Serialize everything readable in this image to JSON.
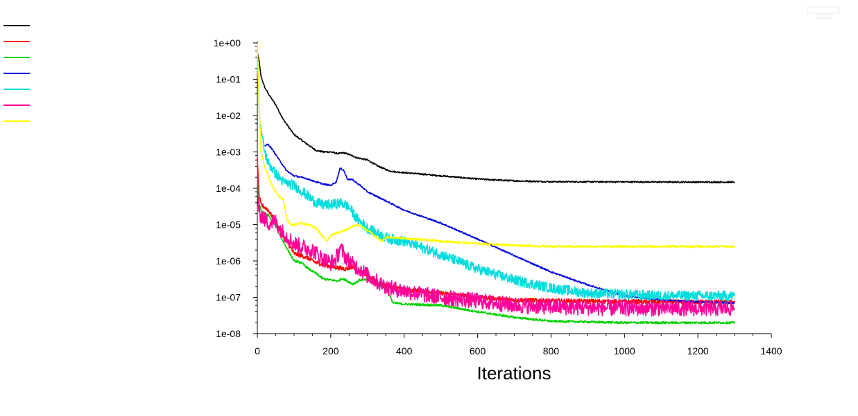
{
  "chart_data": {
    "type": "line",
    "title": "",
    "xlabel": "Iterations",
    "ylabel": "",
    "xlim": [
      0,
      1400
    ],
    "ylim": [
      1e-08,
      1
    ],
    "yscale": "log",
    "grid": false,
    "legend_placement": "top-left",
    "x_ticks": [
      0,
      200,
      400,
      600,
      800,
      1000,
      1200,
      1400
    ],
    "x_tick_labels": [
      "0",
      "200",
      "400",
      "600",
      "800",
      "1000",
      "1200",
      "1400"
    ],
    "y_ticks": [
      1,
      0.1,
      0.01,
      0.001,
      0.0001,
      1e-05,
      1e-06,
      1e-07,
      1e-08
    ],
    "y_tick_labels": [
      "1e+00",
      "1e-01",
      "1e-02",
      "1e-03",
      "1e-04",
      "1e-05",
      "1e-06",
      "1e-07",
      "1e-08"
    ],
    "series": [
      {
        "color": "#000000",
        "noise": 0.02,
        "x": [
          0,
          5,
          10,
          20,
          30,
          50,
          70,
          100,
          130,
          160,
          180,
          200,
          220,
          235,
          250,
          270,
          300,
          330,
          360,
          380,
          400,
          500,
          600,
          700,
          800,
          1000,
          1200,
          1300
        ],
        "y": [
          0.6,
          0.3,
          0.12,
          0.06,
          0.04,
          0.02,
          0.008,
          0.003,
          0.0018,
          0.0011,
          0.001,
          0.001,
          0.0009,
          0.00095,
          0.00085,
          0.0007,
          0.0006,
          0.0004,
          0.0003,
          0.00028,
          0.00027,
          0.00022,
          0.00018,
          0.00016,
          0.000152,
          0.00015,
          0.000148,
          0.000148
        ]
      },
      {
        "color": "#ff0000",
        "noise": 0.06,
        "x": [
          0,
          5,
          10,
          20,
          30,
          50,
          70,
          100,
          130,
          160,
          200,
          220,
          240,
          260,
          280,
          300,
          330,
          360,
          380,
          400,
          450,
          500,
          600,
          700,
          800,
          900,
          1000,
          1100,
          1200,
          1300
        ],
        "y": [
          0.0006,
          6e-05,
          3.5e-05,
          3e-05,
          2.5e-05,
          1.2e-05,
          5e-06,
          1.6e-06,
          1.3e-06,
          9e-07,
          7e-07,
          6.5e-07,
          6e-07,
          7e-07,
          5e-07,
          4e-07,
          2.5e-07,
          2e-07,
          1.8e-07,
          1.6e-07,
          1.5e-07,
          1.3e-07,
          1e-07,
          8.5e-08,
          8e-08,
          7.8e-08,
          7.6e-08,
          7.5e-08,
          7.5e-08,
          7.4e-08
        ]
      },
      {
        "color": "#00d000",
        "noise": 0.03,
        "x": [
          0,
          5,
          10,
          20,
          30,
          50,
          70,
          90,
          100,
          120,
          140,
          160,
          180,
          200,
          220,
          230,
          240,
          260,
          280,
          300,
          330,
          350,
          370,
          400,
          500,
          600,
          700,
          800,
          900,
          1000,
          1100,
          1200,
          1300
        ],
        "y": [
          0.0002,
          4e-05,
          2.5e-05,
          2e-05,
          1.8e-05,
          9e-06,
          3.5e-06,
          1.5e-06,
          1e-06,
          9e-07,
          6e-07,
          4.5e-07,
          3.2e-07,
          3e-07,
          2.8e-07,
          3.3e-07,
          3e-07,
          2.3e-07,
          3e-07,
          3e-07,
          2.2e-07,
          1.8e-07,
          7e-08,
          6.5e-08,
          6e-08,
          4e-08,
          2.8e-08,
          2.2e-08,
          2.1e-08,
          2e-08,
          2e-08,
          2e-08,
          2e-08
        ]
      },
      {
        "color": "#0000dd",
        "noise": 0.02,
        "x": [
          20,
          30,
          40,
          60,
          80,
          100,
          130,
          160,
          180,
          200,
          215,
          225,
          235,
          245,
          260,
          280,
          300,
          350,
          400,
          500,
          600,
          700,
          800,
          900,
          1000,
          1100,
          1200,
          1300
        ],
        "y": [
          0.0015,
          0.0016,
          0.0012,
          0.0006,
          0.0003,
          0.00022,
          0.00019,
          0.00015,
          0.00013,
          0.00012,
          0.00015,
          0.00035,
          0.00032,
          0.00018,
          0.00017,
          0.00012,
          8e-05,
          4.5e-05,
          2.5e-05,
          1.1e-05,
          4e-06,
          1.4e-06,
          5e-07,
          2.2e-07,
          1.1e-07,
          8.5e-08,
          7.5e-08,
          7e-08
        ]
      },
      {
        "color": "#00dddd",
        "noise": 0.14,
        "x": [
          0,
          3,
          6,
          10,
          20,
          30,
          50,
          70,
          100,
          130,
          160,
          180,
          200,
          220,
          230,
          250,
          270,
          300,
          330,
          360,
          400,
          500,
          600,
          700,
          800,
          900,
          1000,
          1100,
          1200,
          1300
        ],
        "y": [
          0.4,
          0.05,
          0.01,
          0.004,
          0.001,
          0.0005,
          0.00025,
          0.00015,
          0.00012,
          7e-05,
          4e-05,
          3.5e-05,
          3.5e-05,
          3.8e-05,
          4e-05,
          3e-05,
          1.5e-05,
          8e-06,
          5.5e-06,
          4e-06,
          3.5e-06,
          1.5e-06,
          6e-07,
          3e-07,
          1.8e-07,
          1.3e-07,
          1.2e-07,
          1.1e-07,
          1.1e-07,
          1.1e-07
        ]
      },
      {
        "color": "#ff0099",
        "noise": 0.22,
        "x": [
          0,
          2,
          5,
          10,
          20,
          30,
          50,
          70,
          100,
          120,
          150,
          180,
          200,
          210,
          220,
          225,
          240,
          260,
          280,
          300,
          330,
          360,
          400,
          450,
          500,
          600,
          700,
          800,
          900,
          1000,
          1100,
          1200,
          1300
        ],
        "y": [
          0.0006,
          5e-05,
          2e-05,
          1.8e-05,
          1.4e-05,
          1.1e-05,
          1.2e-05,
          6e-06,
          3e-06,
          2.5e-06,
          2e-06,
          1.1e-06,
          9e-07,
          1e-06,
          1.5e-06,
          2.4e-06,
          1.3e-06,
          8e-07,
          6e-07,
          4e-07,
          2.5e-07,
          1.8e-07,
          1.5e-07,
          1.2e-07,
          1e-07,
          8e-08,
          6e-08,
          5.5e-08,
          5.2e-08,
          5e-08,
          5e-08,
          5e-08,
          5e-08
        ]
      },
      {
        "color": "#ffff00",
        "noise": 0.03,
        "x": [
          0,
          3,
          6,
          10,
          20,
          40,
          50,
          60,
          70,
          80,
          90,
          100,
          120,
          140,
          160,
          180,
          190,
          200,
          220,
          240,
          260,
          275,
          290,
          310,
          330,
          340,
          350,
          400,
          500,
          600,
          700,
          800,
          900,
          1000,
          1100,
          1200,
          1300
        ],
        "y": [
          1.0,
          0.1,
          0.01,
          0.001,
          0.0004,
          0.00012,
          8e-05,
          6e-05,
          5e-05,
          1.5e-05,
          1e-05,
          1e-05,
          1.1e-05,
          1e-05,
          8e-06,
          4.5e-06,
          3.5e-06,
          5e-06,
          6e-06,
          7e-06,
          9e-06,
          1e-05,
          8e-06,
          6e-06,
          4e-06,
          3.5e-06,
          4.5e-06,
          4.2e-06,
          3.5e-06,
          3e-06,
          2.7e-06,
          2.5e-06,
          2.5e-06,
          2.5e-06,
          2.5e-06,
          2.5e-06,
          2.5e-06
        ]
      }
    ]
  }
}
